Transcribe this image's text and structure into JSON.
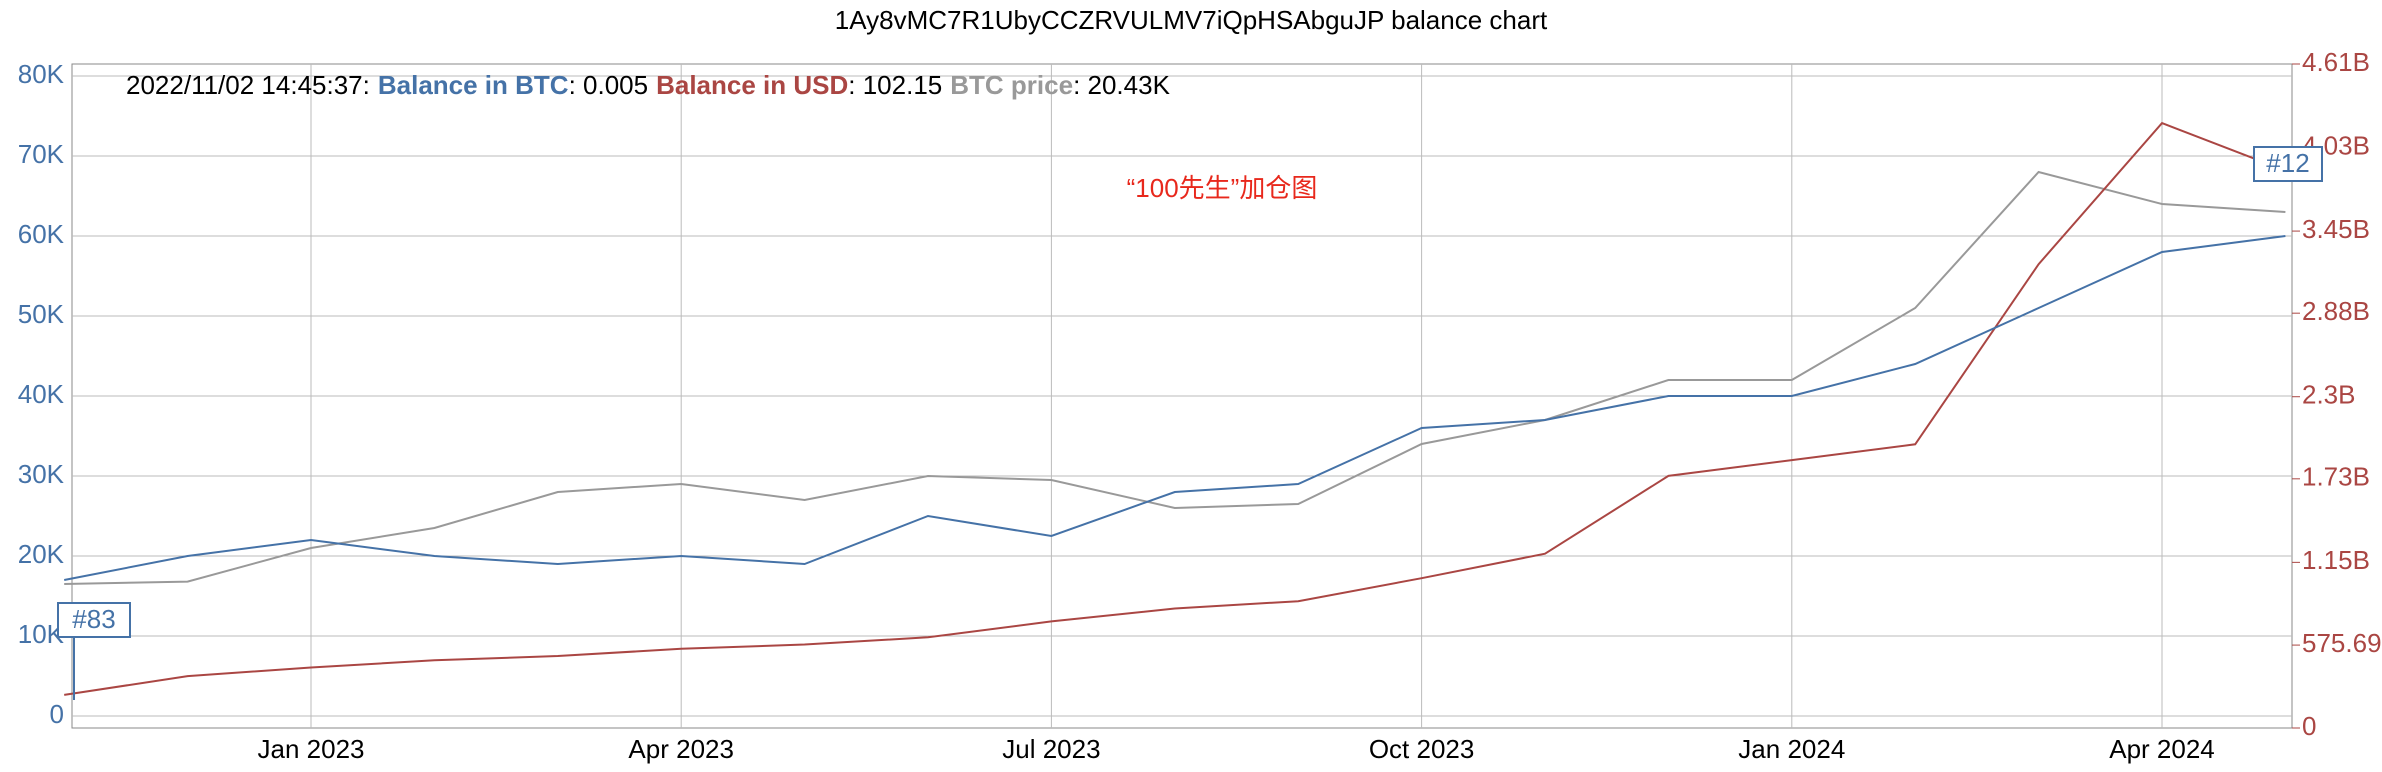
{
  "chart_data": {
    "type": "line",
    "title": "1Ay8vMC7R1UbyCCZRVULMV7iQpHSAbguJP balance chart",
    "categories": [
      null,
      null,
      "Jan 2023",
      null,
      null,
      "Apr 2023",
      null,
      null,
      "Jul 2023",
      null,
      null,
      "Oct 2023",
      null,
      null,
      "Jan 2024",
      null,
      null,
      "Apr 2024",
      null
    ],
    "series": [
      {
        "name": "Balance in BTC",
        "color": "#4572a7",
        "axis": "y",
        "values": [
          17000,
          20000,
          22000,
          20000,
          19000,
          20000,
          19000,
          25000,
          22500,
          28000,
          29000,
          36000,
          37000,
          40000,
          40000,
          44000,
          51000,
          58000,
          60000
        ]
      },
      {
        "name": "Balance in USD",
        "color": "#aa4643",
        "axis": "y2",
        "values": [
          0.23,
          0.36,
          0.42,
          0.47,
          0.5,
          0.55,
          0.58,
          0.63,
          0.74,
          0.83,
          0.88,
          1.04,
          1.21,
          1.75,
          1.86,
          1.97,
          3.22,
          4.2,
          3.87
        ]
      },
      {
        "name": "BTC price",
        "color": "#999999",
        "axis": "y",
        "values": [
          16500,
          16800,
          21000,
          23500,
          28000,
          29000,
          27000,
          30000,
          29500,
          26000,
          26500,
          34000,
          37000,
          42000,
          42000,
          51000,
          68000,
          64000,
          63000
        ]
      }
    ],
    "ylim": [
      -1500,
      81500
    ],
    "yticks": [
      0,
      {
        "value": 10000,
        "label": "10K"
      },
      {
        "value": 20000,
        "label": "20K"
      },
      {
        "value": 30000,
        "label": "30K"
      },
      {
        "value": 40000,
        "label": "40K"
      },
      {
        "value": 50000,
        "label": "50K"
      },
      {
        "value": 60000,
        "label": "60K"
      },
      {
        "value": 70000,
        "label": "70K"
      },
      {
        "value": 80000,
        "label": "80K"
      }
    ],
    "y2lim": [
      0,
      4.61
    ],
    "y2ticks": [
      0,
      {
        "value": 0.57569,
        "label": "575.69"
      },
      {
        "value": 1.15,
        "label": "1.15B"
      },
      {
        "value": 1.73,
        "label": "1.73B"
      },
      {
        "value": 2.3,
        "label": "2.3B"
      },
      {
        "value": 2.88,
        "label": "2.88B"
      },
      {
        "value": 3.45,
        "label": "3.45B"
      },
      {
        "value": 4.03,
        "label": "4.03B"
      },
      {
        "value": 4.61,
        "label": "4.61B"
      }
    ],
    "grid": true,
    "info": [
      "2022/11/02 14:45:37:",
      ": 0.005",
      ": 102.15",
      ": 20.43K"
    ],
    "annotations": [
      "#83",
      "#12",
      "“100先生”加仓图"
    ]
  }
}
